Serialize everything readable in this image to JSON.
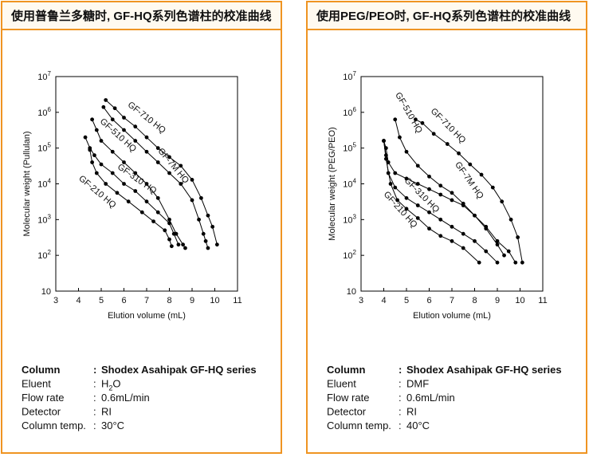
{
  "chart_data": [
    {
      "type": "line",
      "title": "使用普鲁兰多糖时, GF-HQ系列色谱柱的校准曲线",
      "xlabel": "Elution volume (mL)",
      "ylabel": "Molecular weight (Pullulan)",
      "xlim": [
        3,
        11
      ],
      "xticks": [
        3,
        4,
        5,
        6,
        7,
        8,
        9,
        10,
        11
      ],
      "ylim": [
        10,
        10000000
      ],
      "yscale": "log",
      "yticks": [
        10,
        {
          "value": 100,
          "label": "10",
          "sup": "2"
        },
        {
          "value": 1000,
          "label": "10",
          "sup": "3"
        },
        {
          "value": 10000,
          "label": "10",
          "sup": "4"
        },
        {
          "value": 100000,
          "label": "10",
          "sup": "5"
        },
        {
          "value": 1000000,
          "label": "10",
          "sup": "6"
        },
        {
          "value": 10000000,
          "label": "10",
          "sup": "7"
        }
      ],
      "series": [
        {
          "name": "GF-710 HQ",
          "color": "#000000",
          "x": [
            5.2,
            5.6,
            6.0,
            6.5,
            7.0,
            7.5,
            8.0,
            8.5,
            9.0,
            9.4,
            9.7,
            9.9,
            10.1
          ],
          "values": [
            2200000,
            1300000,
            710000,
            400000,
            200000,
            100000,
            56000,
            32000,
            13000,
            4000,
            1300,
            630,
            200
          ]
        },
        {
          "name": "GF-7M HQ",
          "color": "#000000",
          "x": [
            5.1,
            5.5,
            6.0,
            6.5,
            7.0,
            7.5,
            8.0,
            8.5,
            9.0,
            9.3,
            9.5,
            9.6,
            9.7
          ],
          "values": [
            1400000,
            630000,
            320000,
            160000,
            79000,
            40000,
            20000,
            10000,
            3500,
            1000,
            400,
            250,
            160
          ]
        },
        {
          "name": "GF-510 HQ",
          "color": "#000000",
          "x": [
            4.6,
            4.8,
            5.0,
            5.5,
            6.0,
            6.5,
            7.0,
            7.5,
            8.0,
            8.3,
            8.6,
            8.7
          ],
          "values": [
            630000,
            320000,
            160000,
            79000,
            40000,
            20000,
            10000,
            4000,
            1000,
            400,
            200,
            160
          ]
        },
        {
          "name": "GF-310 HQ",
          "color": "#000000",
          "x": [
            4.3,
            4.5,
            4.7,
            5.0,
            5.5,
            6.0,
            6.5,
            7.0,
            7.5,
            8.0,
            8.2,
            8.4
          ],
          "values": [
            200000,
            100000,
            63000,
            35000,
            20000,
            10000,
            6300,
            3200,
            1600,
            790,
            400,
            200
          ]
        },
        {
          "name": "GF-210 HQ",
          "color": "#000000",
          "x": [
            4.5,
            4.6,
            4.8,
            5.2,
            5.7,
            6.2,
            6.8,
            7.3,
            7.8,
            8.0,
            8.1
          ],
          "values": [
            89000,
            40000,
            20000,
            10000,
            5600,
            3200,
            1600,
            890,
            500,
            280,
            180
          ]
        }
      ],
      "separator": ":",
      "conditions": [
        {
          "label": "Column",
          "value": "Shodex Asahipak GF-HQ series"
        },
        {
          "label": "Eluent",
          "value": {
            "text": "H",
            "sub": "2",
            "tail": "O"
          }
        },
        {
          "label": "Flow rate",
          "value": "0.6mL/min"
        },
        {
          "label": "Detector",
          "value": "RI"
        },
        {
          "label": "Column temp.",
          "value": "30°C"
        }
      ]
    },
    {
      "type": "line",
      "title": "使用PEG/PEO时, GF-HQ系列色谱柱的校准曲线",
      "xlabel": "Elution volume (mL)",
      "ylabel": "Molecular weight (PEG/PEO)",
      "xlim": [
        3,
        11
      ],
      "xticks": [
        3,
        4,
        5,
        6,
        7,
        8,
        9,
        10,
        11
      ],
      "ylim": [
        10,
        10000000
      ],
      "yscale": "log",
      "yticks": [
        10,
        {
          "value": 100,
          "label": "10",
          "sup": "2"
        },
        {
          "value": 1000,
          "label": "10",
          "sup": "3"
        },
        {
          "value": 10000,
          "label": "10",
          "sup": "4"
        },
        {
          "value": 100000,
          "label": "10",
          "sup": "5"
        },
        {
          "value": 1000000,
          "label": "10",
          "sup": "6"
        },
        {
          "value": 10000000,
          "label": "10",
          "sup": "7"
        }
      ],
      "series": [
        {
          "name": "GF-710 HQ",
          "color": "#000000",
          "x": [
            5.4,
            5.7,
            6.2,
            6.8,
            7.3,
            7.8,
            8.3,
            8.8,
            9.2,
            9.6,
            9.9,
            10.1
          ],
          "values": [
            630000,
            500000,
            250000,
            130000,
            71000,
            35000,
            18000,
            7900,
            3200,
            1000,
            320,
            63
          ]
        },
        {
          "name": "GF-7M HQ",
          "color": "#000000",
          "x": [
            4.0,
            4.1,
            4.2,
            4.5,
            5.0,
            5.5,
            6.0,
            6.5,
            7.0,
            7.5,
            8.0,
            8.5,
            9.0,
            9.5,
            9.8
          ],
          "values": [
            160000,
            100000,
            40000,
            20000,
            14000,
            10000,
            7100,
            5000,
            3500,
            2500,
            1300,
            630,
            250,
            130,
            63
          ]
        },
        {
          "name": "GF-510 HQ",
          "color": "#000000",
          "x": [
            4.5,
            4.7,
            5.0,
            5.5,
            6.0,
            6.5,
            7.0,
            7.5,
            8.0,
            8.5,
            9.0,
            9.3
          ],
          "values": [
            630000,
            200000,
            79000,
            32000,
            16000,
            8900,
            5600,
            2800,
            1300,
            560,
            200,
            100
          ]
        },
        {
          "name": "GF-310 HQ",
          "color": "#000000",
          "x": [
            4.0,
            4.1,
            4.2,
            4.5,
            5.0,
            5.5,
            6.0,
            6.5,
            7.0,
            7.5,
            8.0,
            8.5,
            9.0
          ],
          "values": [
            160000,
            63000,
            20000,
            7900,
            4000,
            2500,
            1600,
            1000,
            630,
            400,
            250,
            130,
            63
          ]
        },
        {
          "name": "GF-210 HQ",
          "color": "#000000",
          "x": [
            4.0,
            4.1,
            4.3,
            4.6,
            5.0,
            5.5,
            6.0,
            6.5,
            7.0,
            7.5,
            8.2
          ],
          "values": [
            160000,
            50000,
            10000,
            3500,
            2000,
            1100,
            560,
            350,
            250,
            160,
            63
          ]
        }
      ],
      "separator": ":",
      "conditions": [
        {
          "label": "Column",
          "value": "Shodex Asahipak GF-HQ series"
        },
        {
          "label": "Eluent",
          "value": "DMF"
        },
        {
          "label": "Flow rate",
          "value": "0.6mL/min"
        },
        {
          "label": "Detector",
          "value": "RI"
        },
        {
          "label": "Column temp.",
          "value": "40°C"
        }
      ]
    }
  ]
}
